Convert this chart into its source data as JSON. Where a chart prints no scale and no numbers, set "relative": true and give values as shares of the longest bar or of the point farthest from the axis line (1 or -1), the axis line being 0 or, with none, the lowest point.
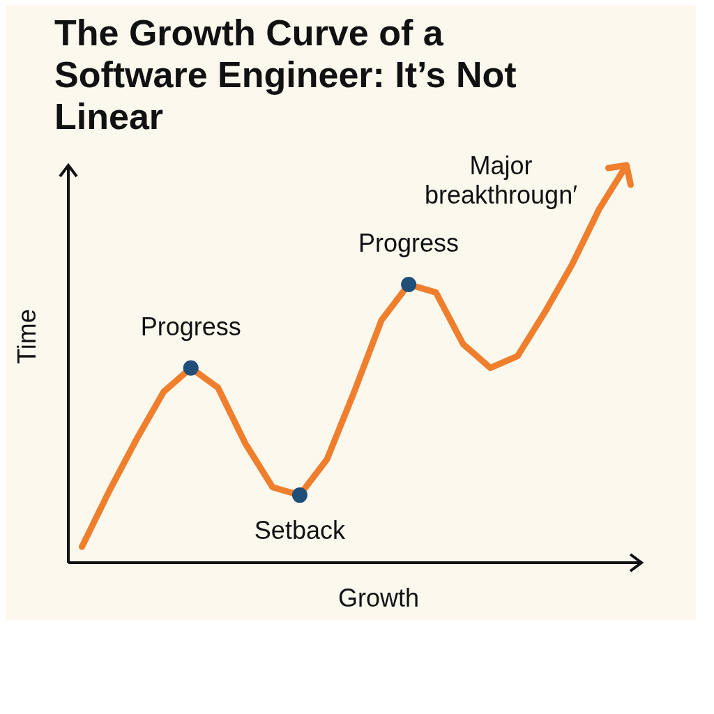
{
  "chart_data": {
    "type": "line",
    "title": "The Growth Curve of a Software Engineer: It’s Not Linear",
    "xlabel": "Growth",
    "ylabel": "Time",
    "relative": true,
    "categories": [
      null,
      null,
      null,
      null,
      null,
      null,
      null,
      null,
      null,
      null,
      null,
      null,
      null,
      null,
      null,
      null,
      null,
      null,
      null,
      null,
      null
    ],
    "series": [
      {
        "color": "#f07f2d",
        "values": [
          0.04,
          0.18,
          0.31,
          0.43,
          0.49,
          0.44,
          0.3,
          0.19,
          0.17,
          0.26,
          0.43,
          0.61,
          0.7,
          0.68,
          0.55,
          0.49,
          0.52,
          0.63,
          0.75,
          0.89,
          1.0
        ]
      }
    ],
    "annotations": [
      {
        "text": "Progress",
        "y": 0.49
      },
      {
        "text": "Setback",
        "y": 0.17
      },
      {
        "text": "Progress",
        "y": 0.7
      },
      "Major breakthrougn′"
    ],
    "grid": false,
    "legend": false
  }
}
